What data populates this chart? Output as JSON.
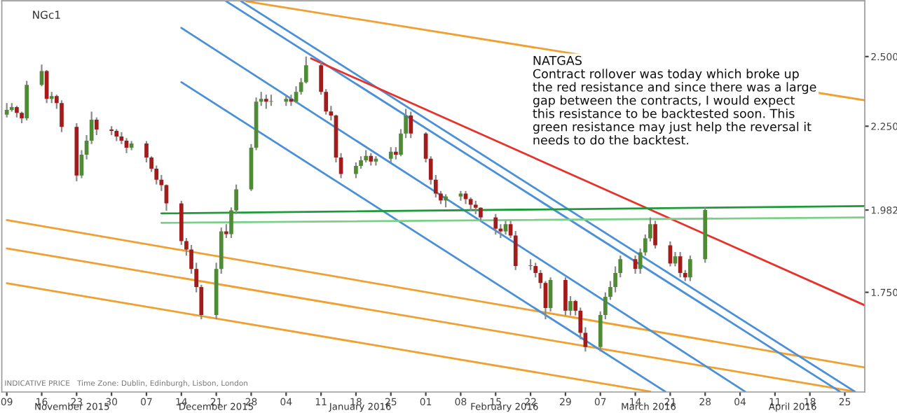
{
  "chart_data": {
    "type": "candlestick",
    "title": "NGc1",
    "annotations": [
      "NATGAS\nContract rollover was today which broke up\nthe red resistance and since there was a large\ngap between the contracts, I would expect\nthis resistance to be backtested soon. This\ngreen resistance may just help the reversal it\nneeds to do the backtest.",
      "INDICATIVE PRICE   Time Zone: Dublin, Edinburgh, Lisbon, London",
      "November 2015",
      "December 2015",
      "January 2016",
      "February 2016",
      "March 2016",
      "April 2016"
    ],
    "colors": [
      "#4f8a34",
      "#4f8a34",
      "#a31c1c",
      "#a31c1c",
      "#4f8a34",
      "#4f8a34",
      "#a31c1c",
      "#4f8a34",
      "#a31c1c",
      "#a31c1c",
      "#a31c1c",
      "#4f8a34",
      "#4f8a34",
      "#4f8a34",
      "#a31c1c",
      "#a31c1c",
      "#a31c1c",
      "#a31c1c",
      "#a31c1c",
      "#4f8a34",
      "#a31c1c",
      "#a31c1c",
      "#a31c1c",
      "#a31c1c",
      "#a31c1c",
      "#a31c1c",
      "#a31c1c",
      "#a31c1c",
      "#a31c1c",
      "#a31c1c",
      "#4f8a34",
      "#4f8a34",
      "#a31c1c",
      "#4f8a34",
      "#4f8a34",
      "#4f8a34",
      "#4f8a34",
      "#4f8a34",
      "#a31c1c",
      "#4f8a34",
      "#4f8a34",
      "#a31c1c",
      "#4f8a34",
      "#4f8a34",
      "#4f8a34",
      "#a31c1c",
      "#a31c1c",
      "#a31c1c",
      "#a31c1c",
      "#a31c1c",
      "#4f8a34",
      "#4f8a34",
      "#4f8a34",
      "#a31c1c",
      "#4f8a34",
      "#4f8a34",
      "#a31c1c",
      "#4f8a34",
      "#4f8a34",
      "#a31c1c",
      "#a31c1c",
      "#a31c1c",
      "#a31c1c",
      "#a31c1c",
      "#4f8a34",
      "#4f8a34",
      "#a31c1c",
      "#a31c1c",
      "#a31c1c",
      "#a31c1c",
      "#a31c1c",
      "#a31c1c",
      "#4f8a34",
      "#a31c1c",
      "#a31c1c",
      "#4f8a34",
      "#a31c1c",
      "#a31c1c",
      "#a31c1c",
      "#4f8a34",
      "#a31c1c",
      "#4f8a34",
      "#a31c1c",
      "#a31c1c",
      "#a31c1c",
      "#4f8a34",
      "#4f8a34",
      "#4f8a34",
      "#4f8a34",
      "#4f8a34",
      "#a31c1c",
      "#4f8a34",
      "#4f8a34",
      "#4f8a34",
      "#a31c1c",
      "#a31c1c",
      "#4f8a34",
      "#a31c1c",
      "#a31c1c",
      "#4f8a34",
      "#4f8a34"
    ],
    "log": "y",
    "grid": false,
    "legend": false,
    "xlim": [
      "2015-11-08",
      "2016-04-29"
    ],
    "ylim": [
      1.505,
      2.72
    ],
    "xticks": [
      {
        "value": "2015-11-09",
        "label": "09"
      },
      {
        "value": "2015-11-16",
        "label": "16"
      },
      {
        "value": "2015-11-23",
        "label": "23"
      },
      {
        "value": "2015-11-30",
        "label": "30"
      },
      {
        "value": "2015-12-07",
        "label": "07"
      },
      {
        "value": "2015-12-14",
        "label": "14"
      },
      {
        "value": "2015-12-21",
        "label": "21"
      },
      {
        "value": "2015-12-28",
        "label": "28"
      },
      {
        "value": "2016-01-04",
        "label": "04"
      },
      {
        "value": "2016-01-11",
        "label": "11"
      },
      {
        "value": "2016-01-18",
        "label": "18"
      },
      {
        "value": "2016-01-25",
        "label": "25"
      },
      {
        "value": "2016-02-01",
        "label": "01"
      },
      {
        "value": "2016-02-08",
        "label": "08"
      },
      {
        "value": "2016-02-15",
        "label": "15"
      },
      {
        "value": "2016-02-22",
        "label": "22"
      },
      {
        "value": "2016-02-29",
        "label": "29"
      },
      {
        "value": "2016-03-07",
        "label": "07"
      },
      {
        "value": "2016-03-14",
        "label": "14"
      },
      {
        "value": "2016-03-21",
        "label": "21"
      },
      {
        "value": "2016-03-28",
        "label": "28"
      },
      {
        "value": "2016-04-04",
        "label": "04"
      },
      {
        "value": "2016-04-11",
        "label": "11"
      },
      {
        "value": "2016-04-18",
        "label": "18"
      },
      {
        "value": "2016-04-25",
        "label": "25"
      }
    ],
    "yticks": [
      {
        "value": 1.75,
        "label": "1.750"
      },
      {
        "value": 1.982,
        "label": "1.982"
      },
      {
        "value": 2.25,
        "label": "2.250"
      },
      {
        "value": 2.5,
        "label": "2.500"
      }
    ],
    "x": [
      "2015-11-09",
      "2015-11-10",
      "2015-11-11",
      "2015-11-12",
      "2015-11-13",
      "2015-11-16",
      "2015-11-17",
      "2015-11-18",
      "2015-11-19",
      "2015-11-20",
      "2015-11-23",
      "2015-11-24",
      "2015-11-25",
      "2015-11-26",
      "2015-11-27",
      "2015-11-30",
      "2015-12-01",
      "2015-12-02",
      "2015-12-03",
      "2015-12-04",
      "2015-12-07",
      "2015-12-08",
      "2015-12-09",
      "2015-12-10",
      "2015-12-11",
      "2015-12-14",
      "2015-12-15",
      "2015-12-16",
      "2015-12-17",
      "2015-12-18",
      "2015-12-21",
      "2015-12-22",
      "2015-12-23",
      "2015-12-24",
      "2015-12-25",
      "2015-12-28",
      "2015-12-29",
      "2015-12-30",
      "2015-12-31",
      "2016-01-01",
      "2016-01-04",
      "2016-01-05",
      "2016-01-06",
      "2016-01-07",
      "2016-01-08",
      "2016-01-11",
      "2016-01-12",
      "2016-01-13",
      "2016-01-14",
      "2016-01-15",
      "2016-01-18",
      "2016-01-19",
      "2016-01-20",
      "2016-01-21",
      "2016-01-22",
      "2016-01-25",
      "2016-01-26",
      "2016-01-27",
      "2016-01-28",
      "2016-01-29",
      "2016-02-01",
      "2016-02-02",
      "2016-02-03",
      "2016-02-04",
      "2016-02-05",
      "2016-02-08",
      "2016-02-09",
      "2016-02-10",
      "2016-02-11",
      "2016-02-12",
      "2016-02-15",
      "2016-02-16",
      "2016-02-17",
      "2016-02-18",
      "2016-02-19",
      "2016-02-22",
      "2016-02-23",
      "2016-02-24",
      "2016-02-25",
      "2016-02-26",
      "2016-02-29",
      "2016-03-01",
      "2016-03-02",
      "2016-03-03",
      "2016-03-04",
      "2016-03-07",
      "2016-03-08",
      "2016-03-09",
      "2016-03-10",
      "2016-03-11",
      "2016-03-14",
      "2016-03-15",
      "2016-03-16",
      "2016-03-17",
      "2016-03-18",
      "2016-03-21",
      "2016-03-22",
      "2016-03-23",
      "2016-03-24",
      "2016-03-25",
      "2016-03-28"
    ],
    "ohlc": [
      [
        2.29,
        2.33,
        2.28,
        2.306
      ],
      [
        2.306,
        2.33,
        2.3,
        2.316
      ],
      [
        2.316,
        2.32,
        2.28,
        2.296
      ],
      [
        2.296,
        2.3,
        2.26,
        2.277
      ],
      [
        2.277,
        2.41,
        2.27,
        2.395
      ],
      [
        2.395,
        2.47,
        2.39,
        2.446
      ],
      [
        2.446,
        2.45,
        2.33,
        2.345
      ],
      [
        2.345,
        2.37,
        2.33,
        2.355
      ],
      [
        2.355,
        2.36,
        2.31,
        2.33
      ],
      [
        2.33,
        2.34,
        2.23,
        2.248
      ],
      [
        2.248,
        2.26,
        2.07,
        2.088
      ],
      [
        2.088,
        2.17,
        2.08,
        2.155
      ],
      [
        2.155,
        2.22,
        2.14,
        2.201
      ],
      [
        2.201,
        2.3,
        2.19,
        2.272
      ],
      [
        2.272,
        2.28,
        2.22,
        2.239
      ],
      [
        2.239,
        2.25,
        2.22,
        2.234
      ],
      [
        2.234,
        2.24,
        2.2,
        2.215
      ],
      [
        2.215,
        2.23,
        2.19,
        2.201
      ],
      [
        2.201,
        2.21,
        2.16,
        2.178
      ],
      [
        2.178,
        2.2,
        2.17,
        2.192
      ],
      [
        2.192,
        2.2,
        2.13,
        2.146
      ],
      [
        2.146,
        2.15,
        2.1,
        2.11
      ],
      [
        2.11,
        2.12,
        2.06,
        2.075
      ],
      [
        2.075,
        2.09,
        2.04,
        2.058
      ],
      [
        2.058,
        2.06,
        1.98,
        2.002
      ],
      [
        2.002,
        2.01,
        1.88,
        1.891
      ],
      [
        1.891,
        1.9,
        1.85,
        1.867
      ],
      [
        1.867,
        1.88,
        1.8,
        1.813
      ],
      [
        1.813,
        1.83,
        1.75,
        1.764
      ],
      [
        1.764,
        1.77,
        1.68,
        1.691
      ],
      [
        1.691,
        1.83,
        1.68,
        1.813
      ],
      [
        1.813,
        1.93,
        1.8,
        1.919
      ],
      [
        1.919,
        1.94,
        1.9,
        1.911
      ],
      [
        1.911,
        1.99,
        1.9,
        1.981
      ],
      [
        1.981,
        2.06,
        1.97,
        2.045
      ],
      [
        2.045,
        2.19,
        2.04,
        2.178
      ],
      [
        2.178,
        2.35,
        2.17,
        2.335
      ],
      [
        2.335,
        2.37,
        2.32,
        2.345
      ],
      [
        2.345,
        2.36,
        2.31,
        2.335
      ],
      [
        2.335,
        2.36,
        2.32,
        2.335
      ],
      [
        2.335,
        2.36,
        2.32,
        2.345
      ],
      [
        2.345,
        2.36,
        2.32,
        2.335
      ],
      [
        2.335,
        2.39,
        2.33,
        2.37
      ],
      [
        2.37,
        2.42,
        2.36,
        2.405
      ],
      [
        2.405,
        2.5,
        2.4,
        2.467
      ],
      [
        2.467,
        2.48,
        2.36,
        2.37
      ],
      [
        2.37,
        2.38,
        2.29,
        2.301
      ],
      [
        2.301,
        2.32,
        2.27,
        2.287
      ],
      [
        2.287,
        2.29,
        2.13,
        2.146
      ],
      [
        2.146,
        2.16,
        2.08,
        2.093
      ],
      [
        2.093,
        2.13,
        2.08,
        2.119
      ],
      [
        2.119,
        2.15,
        2.11,
        2.137
      ],
      [
        2.137,
        2.17,
        2.13,
        2.151
      ],
      [
        2.151,
        2.16,
        2.12,
        2.133
      ],
      [
        2.133,
        2.15,
        2.12,
        2.142
      ],
      [
        2.142,
        2.18,
        2.13,
        2.165
      ],
      [
        2.165,
        2.18,
        2.14,
        2.155
      ],
      [
        2.155,
        2.24,
        2.15,
        2.225
      ],
      [
        2.225,
        2.31,
        2.21,
        2.287
      ],
      [
        2.287,
        2.3,
        2.21,
        2.225
      ],
      [
        2.225,
        2.23,
        2.13,
        2.142
      ],
      [
        2.142,
        2.15,
        2.06,
        2.075
      ],
      [
        2.075,
        2.09,
        2.02,
        2.032
      ],
      [
        2.032,
        2.04,
        2.0,
        2.011
      ],
      [
        2.011,
        2.03,
        1.99,
        2.023
      ],
      [
        2.023,
        2.04,
        2.01,
        2.032
      ],
      [
        2.032,
        2.04,
        2.0,
        2.015
      ],
      [
        2.015,
        2.02,
        1.98,
        1.998
      ],
      [
        1.998,
        2.01,
        1.97,
        1.989
      ],
      [
        1.989,
        1.99,
        1.95,
        1.96
      ],
      [
        1.96,
        1.97,
        1.91,
        1.927
      ],
      [
        1.927,
        1.94,
        1.9,
        1.919
      ],
      [
        1.919,
        1.95,
        1.91,
        1.94
      ],
      [
        1.94,
        1.95,
        1.9,
        1.907
      ],
      [
        1.907,
        1.92,
        1.81,
        1.821
      ],
      [
        1.821,
        1.84,
        1.81,
        1.821
      ],
      [
        1.821,
        1.83,
        1.79,
        1.802
      ],
      [
        1.802,
        1.81,
        1.76,
        1.775
      ],
      [
        1.775,
        1.78,
        1.68,
        1.709
      ],
      [
        1.709,
        1.79,
        1.7,
        1.783
      ],
      [
        1.783,
        1.79,
        1.69,
        1.702
      ],
      [
        1.702,
        1.74,
        1.69,
        1.727
      ],
      [
        1.727,
        1.73,
        1.69,
        1.702
      ],
      [
        1.702,
        1.71,
        1.63,
        1.646
      ],
      [
        1.646,
        1.66,
        1.6,
        1.611
      ],
      [
        1.611,
        1.7,
        1.6,
        1.691
      ],
      [
        1.691,
        1.75,
        1.68,
        1.738
      ],
      [
        1.738,
        1.78,
        1.73,
        1.764
      ],
      [
        1.764,
        1.82,
        1.75,
        1.802
      ],
      [
        1.802,
        1.85,
        1.79,
        1.84
      ],
      [
        1.84,
        1.85,
        1.8,
        1.813
      ],
      [
        1.813,
        1.87,
        1.8,
        1.859
      ],
      [
        1.859,
        1.91,
        1.85,
        1.899
      ],
      [
        1.899,
        1.96,
        1.89,
        1.94
      ],
      [
        1.94,
        1.95,
        1.87,
        1.879
      ],
      [
        1.879,
        1.89,
        1.82,
        1.828
      ],
      [
        1.828,
        1.86,
        1.82,
        1.848
      ],
      [
        1.848,
        1.86,
        1.79,
        1.802
      ],
      [
        1.802,
        1.81,
        1.78,
        1.79
      ],
      [
        1.79,
        1.85,
        1.78,
        1.84
      ],
      [
        1.84,
        1.99,
        1.83,
        1.982
      ]
    ],
    "series": [
      {
        "type": "line",
        "color": "#f0a030",
        "x": [
          "2015-12-27",
          "2016-04-29"
        ],
        "values": [
          2.718,
          2.34
        ]
      },
      {
        "type": "line",
        "color": "#f0a030",
        "x": [
          "2015-11-09",
          "2016-04-29"
        ],
        "values": [
          1.952,
          1.562
        ]
      },
      {
        "type": "line",
        "color": "#f0a030",
        "x": [
          "2015-11-09",
          "2016-04-27"
        ],
        "values": [
          1.87,
          1.506
        ]
      },
      {
        "type": "line",
        "color": "#f0a030",
        "x": [
          "2015-11-09",
          "2016-03-17"
        ],
        "values": [
          1.774,
          1.506
        ]
      },
      {
        "type": "line",
        "color": "#4a90d9",
        "x": [
          "2015-12-14",
          "2016-04-05"
        ],
        "values": [
          2.611,
          1.506
        ]
      },
      {
        "type": "line",
        "color": "#4a90d9",
        "x": [
          "2015-12-14",
          "2016-03-20"
        ],
        "values": [
          2.405,
          1.506
        ]
      },
      {
        "type": "line",
        "color": "#4a90d9",
        "x": [
          "2015-12-23",
          "2016-04-24"
        ],
        "values": [
          2.718,
          1.506
        ]
      },
      {
        "type": "line",
        "color": "#4a90d9",
        "x": [
          "2015-12-26",
          "2016-04-27"
        ],
        "values": [
          2.718,
          1.506
        ]
      },
      {
        "type": "line",
        "color": "#e8312a",
        "x": [
          "2016-01-09",
          "2016-04-29"
        ],
        "values": [
          2.493,
          1.716
        ]
      },
      {
        "type": "line",
        "color": "#1f9a3a",
        "x": [
          "2015-12-10",
          "2016-04-29"
        ],
        "values": [
          1.972,
          1.994
        ]
      },
      {
        "type": "line",
        "color": "#7ccf8a",
        "x": [
          "2015-12-10",
          "2016-04-29"
        ],
        "values": [
          1.944,
          1.96
        ]
      }
    ]
  }
}
